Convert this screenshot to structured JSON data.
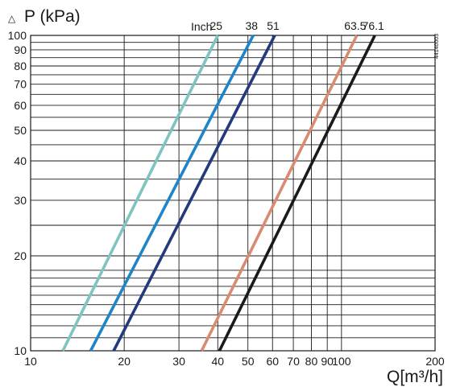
{
  "chart_data": {
    "type": "line",
    "y_axis": {
      "label": "P (kPa)",
      "symbol": "△",
      "scale": "log",
      "range": [
        10,
        100
      ],
      "ticks": [
        10,
        20,
        30,
        40,
        50,
        60,
        70,
        80,
        90,
        100
      ]
    },
    "x_axis": {
      "label": "Q[m³/h]",
      "scale": "log",
      "range": [
        10,
        200
      ],
      "ticks": [
        10,
        20,
        30,
        40,
        50,
        60,
        70,
        80,
        90,
        100,
        200
      ]
    },
    "grid": true,
    "unit_label": "Inch",
    "code_label": "44140003",
    "series": [
      {
        "name": "25",
        "color": "#7fc4c0",
        "points": [
          [
            12.7,
            10
          ],
          [
            40,
            100
          ]
        ]
      },
      {
        "name": "38",
        "color": "#1f85c8",
        "points": [
          [
            15.6,
            10
          ],
          [
            52,
            100
          ]
        ]
      },
      {
        "name": "51",
        "color": "#213b7b",
        "points": [
          [
            18.5,
            10
          ],
          [
            61,
            100
          ]
        ]
      },
      {
        "name": "63.5",
        "color": "#d98b72",
        "points": [
          [
            35.5,
            10
          ],
          [
            112,
            100
          ]
        ]
      },
      {
        "name": "76.1",
        "color": "#1a1a1a",
        "points": [
          [
            40.5,
            10
          ],
          [
            128,
            100
          ]
        ]
      }
    ]
  }
}
